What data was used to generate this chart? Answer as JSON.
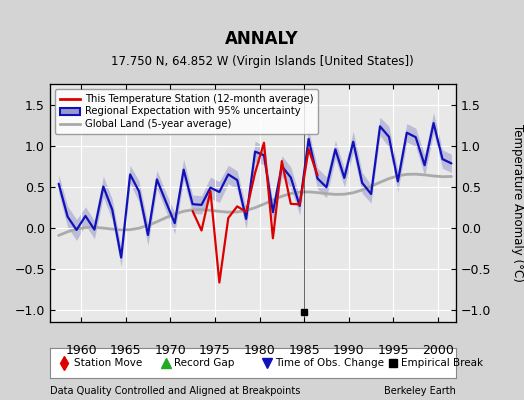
{
  "title": "ANNALY",
  "subtitle": "17.750 N, 64.852 W (Virgin Islands [United States])",
  "ylabel": "Temperature Anomaly (°C)",
  "footer_left": "Data Quality Controlled and Aligned at Breakpoints",
  "footer_right": "Berkeley Earth",
  "ylim": [
    -1.15,
    1.75
  ],
  "yticks": [
    -1.0,
    -0.5,
    0.0,
    0.5,
    1.0,
    1.5
  ],
  "xlim": [
    1956.5,
    2002.0
  ],
  "xticks": [
    1960,
    1965,
    1970,
    1975,
    1980,
    1985,
    1990,
    1995,
    2000
  ],
  "bg_color": "#d4d4d4",
  "plot_bg_color": "#e8e8e8",
  "grid_color": "#ffffff",
  "legend_labels": [
    "This Temperature Station (12-month average)",
    "Regional Expectation with 95% uncertainty",
    "Global Land (5-year average)"
  ],
  "station_color": "#dd0000",
  "regional_color": "#1111bb",
  "regional_fill_color": "#9999cc",
  "global_color": "#aaaaaa",
  "empirical_break_x": 1985.0,
  "empirical_break_y": -1.03
}
